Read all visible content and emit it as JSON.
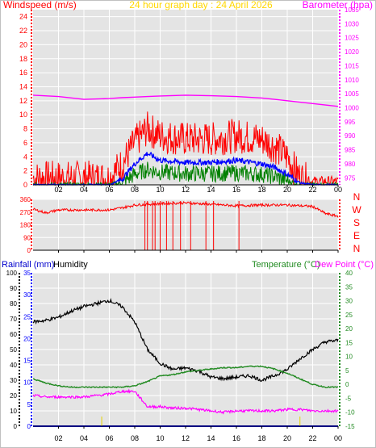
{
  "header": {
    "left_label": "Windspeed (m/s)",
    "title": "24 hour graph day : 24 April 2026",
    "right_label": "Barometer (hpa)"
  },
  "direction_labels": [
    "N",
    "W",
    "S",
    "E",
    "N"
  ],
  "lower": {
    "rain_label": "Rainfall (mm)",
    "hum_label": "Humidity",
    "temp_label": "Temperature (°C)",
    "dew_label": "Dew Point (°C)"
  },
  "colors": {
    "windspeed": "#ff0000",
    "wind_avg": "#0000ff",
    "wind_green": "#008000",
    "barometer": "#ff00ff",
    "direction": "#ff0000",
    "humidity": "#000000",
    "temperature": "#228b22",
    "dewpoint": "#ff00ff",
    "rainfall": "#0000ff",
    "title": "#ffd700",
    "plot_bg": "#e4e4e4"
  },
  "chart_data": [
    {
      "type": "line",
      "title": "24 hour graph day : 24 April 2026",
      "ylabel": "Windspeed (m/s)",
      "y2label": "Barometer (hpa)",
      "xticks": [
        "02",
        "04",
        "06",
        "08",
        "10",
        "12",
        "14",
        "16",
        "18",
        "20",
        "22",
        "00"
      ],
      "ylim": [
        0,
        25
      ],
      "yticks": [
        "0",
        "2",
        "4",
        "6",
        "8",
        "10",
        "12",
        "14",
        "16",
        "18",
        "20",
        "22",
        "24"
      ],
      "y2lim": [
        972.5,
        1035
      ],
      "y2ticks": [
        "975",
        "980",
        "985",
        "990",
        "995",
        "1000",
        "1005",
        "1010",
        "1015",
        "1020",
        "1025",
        "1030",
        "1035"
      ],
      "x": [
        0,
        2,
        4,
        6,
        7,
        8,
        9,
        10,
        12,
        14,
        16,
        18,
        19,
        20,
        21,
        22,
        24
      ],
      "series": [
        {
          "axis": "y2",
          "values": [
            1004.5,
            1004,
            1003,
            1003.3,
            1003.6,
            1003.8,
            1004,
            1004.2,
            1004.5,
            1004.3,
            1004,
            1003.5,
            1003,
            1002.5,
            1002,
            1001.5,
            1000.5
          ]
        },
        {
          "axis": "y",
          "values": [
            1,
            1,
            1,
            1,
            3,
            6,
            8,
            7,
            6.5,
            6.5,
            7,
            6.5,
            5.5,
            4,
            1,
            0.5,
            0.5
          ]
        },
        {
          "axis": "y",
          "values": [
            0,
            0,
            0,
            0,
            0.8,
            3,
            4.5,
            3.5,
            3.2,
            3.2,
            3.5,
            3,
            2.5,
            1.5,
            0.3,
            0,
            0
          ]
        },
        {
          "axis": "y",
          "values": [
            0,
            0,
            0,
            0,
            0.3,
            1.5,
            2.2,
            1.8,
            1.6,
            1.6,
            1.7,
            1.5,
            1.2,
            0.6,
            0,
            0,
            0
          ]
        }
      ]
    },
    {
      "type": "line",
      "xticks": [
        "02",
        "04",
        "06",
        "08",
        "10",
        "12",
        "14",
        "16",
        "18",
        "20",
        "22",
        "00"
      ],
      "ylim": [
        0,
        360
      ],
      "yticks": [
        "0",
        "90",
        "180",
        "270",
        "360"
      ],
      "x": [
        0,
        1,
        2,
        4,
        6,
        7,
        8,
        10,
        12,
        14,
        16,
        18,
        20,
        22,
        23,
        24
      ],
      "series": [
        {
          "values": [
            290,
            265,
            285,
            285,
            285,
            300,
            320,
            330,
            335,
            325,
            315,
            320,
            320,
            310,
            260,
            240
          ]
        }
      ]
    },
    {
      "type": "line",
      "xticks": [
        "02",
        "04",
        "06",
        "08",
        "10",
        "12",
        "14",
        "16",
        "18",
        "20",
        "22",
        "00"
      ],
      "ylim": [
        0,
        100
      ],
      "yticks": [
        "0",
        "10",
        "20",
        "30",
        "40",
        "50",
        "60",
        "70",
        "80",
        "90",
        "100"
      ],
      "y2lim": [
        0,
        35
      ],
      "y2ticks": [
        "0",
        "5",
        "10",
        "15",
        "20",
        "25",
        "30",
        "35"
      ],
      "y3lim": [
        -15,
        40
      ],
      "y3ticks": [
        "-15",
        "-10",
        "-5",
        "0",
        "5",
        "10",
        "15",
        "20",
        "25",
        "30",
        "35",
        "40"
      ],
      "x": [
        0,
        1,
        2,
        3,
        4,
        5,
        6,
        7,
        8,
        9,
        10,
        11,
        12,
        13,
        14,
        15,
        16,
        17,
        18,
        19,
        20,
        21,
        22,
        23,
        24
      ],
      "series": [
        {
          "name": "Humidity",
          "axis": "y",
          "values": [
            68,
            69,
            71,
            75,
            78,
            80,
            82,
            78,
            68,
            50,
            41,
            37,
            38,
            36,
            32,
            31,
            32,
            33,
            30,
            33,
            37,
            44,
            50,
            55,
            56
          ]
        },
        {
          "name": "Temperature (°C)",
          "axis": "y3",
          "values": [
            2,
            0.5,
            -0.5,
            -1,
            -1,
            -1,
            -1,
            -1,
            -0.5,
            1,
            3,
            3.5,
            4.5,
            5,
            5.5,
            6,
            6,
            6.5,
            6.5,
            5.5,
            4,
            2,
            0,
            -1,
            -1
          ]
        },
        {
          "name": "Dew Point (°C)",
          "axis": "y3",
          "values": [
            -4,
            -4.5,
            -4.5,
            -4.5,
            -4.5,
            -4,
            -3.5,
            -2.5,
            -2.5,
            -8,
            -8,
            -8.5,
            -8.5,
            -9,
            -9.5,
            -10,
            -9.5,
            -9.5,
            -9.5,
            -9.5,
            -9,
            -9,
            -9.5,
            -9.5,
            -9.5
          ]
        },
        {
          "name": "Rainfall (mm)",
          "axis": "y2",
          "values": [
            0,
            0,
            0,
            0,
            0,
            0,
            0,
            0,
            0,
            0,
            0,
            0,
            0,
            0,
            0,
            0,
            0,
            0,
            0,
            0,
            0,
            0,
            0,
            0,
            0
          ]
        }
      ]
    }
  ]
}
